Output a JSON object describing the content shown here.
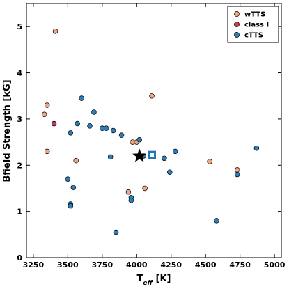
{
  "chart_data": {
    "type": "scatter",
    "xlabel_main": "T",
    "xlabel_sub": "eff",
    "xlabel_unit": " [K]",
    "ylabel": "Bfield Strength [kG]",
    "xlim": [
      3200,
      5050
    ],
    "ylim": [
      0,
      5.5
    ],
    "xticks": [
      3250,
      3500,
      3750,
      4000,
      4250,
      4500,
      4750,
      5000
    ],
    "yticks": [
      0,
      1,
      2,
      3,
      4,
      5
    ],
    "legend_position": "top-right",
    "series": [
      {
        "name": "wTTS",
        "color": "#f4a582",
        "points": [
          [
            3410,
            4.9
          ],
          [
            3330,
            3.1
          ],
          [
            3350,
            3.3
          ],
          [
            3350,
            2.3
          ],
          [
            3560,
            2.1
          ],
          [
            3940,
            1.42
          ],
          [
            3970,
            2.5
          ],
          [
            4000,
            2.5
          ],
          [
            4060,
            1.5
          ],
          [
            4110,
            3.5
          ],
          [
            4530,
            2.08
          ],
          [
            4730,
            1.9
          ]
        ]
      },
      {
        "name": "class I",
        "color": "#ca3c54",
        "points": [
          [
            3400,
            2.9
          ]
        ]
      },
      {
        "name": "cTTS",
        "color": "#2c7fb8",
        "points": [
          [
            3600,
            3.45
          ],
          [
            3690,
            3.15
          ],
          [
            3660,
            2.85
          ],
          [
            3750,
            2.8
          ],
          [
            3780,
            2.8
          ],
          [
            3830,
            2.75
          ],
          [
            3890,
            2.65
          ],
          [
            3810,
            2.18
          ],
          [
            3570,
            2.9
          ],
          [
            3520,
            2.7
          ],
          [
            4020,
            2.55
          ],
          [
            4050,
            2.2
          ],
          [
            4280,
            2.3
          ],
          [
            4200,
            2.15
          ],
          [
            4240,
            1.85
          ],
          [
            4870,
            2.37
          ],
          [
            4730,
            1.8
          ],
          [
            3500,
            1.7
          ],
          [
            3540,
            1.52
          ],
          [
            3520,
            1.16
          ],
          [
            3520,
            1.12
          ],
          [
            3960,
            1.3
          ],
          [
            3960,
            1.24
          ],
          [
            3850,
            0.55
          ],
          [
            4580,
            0.8
          ]
        ]
      }
    ],
    "highlights": [
      {
        "symbol": "star",
        "x": 4020,
        "y": 2.2,
        "color": "#000000"
      },
      {
        "symbol": "square",
        "x": 4110,
        "y": 2.22,
        "color": "#1f78b4"
      }
    ]
  }
}
